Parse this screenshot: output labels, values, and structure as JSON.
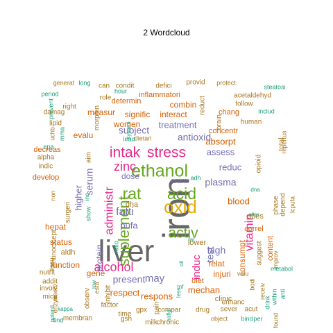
{
  "chart_data": {
    "type": "wordcloud",
    "title": "2  Wordcloud",
    "colors": [
      "#666666",
      "#E6AB02",
      "#D95F02",
      "#66A61E",
      "#E7298A",
      "#7570B3",
      "#1B9E77",
      "#A6761D"
    ],
    "words": [
      {
        "text": "liver",
        "color": "#666666"
      },
      {
        "text": "iron",
        "color": "#666666"
      },
      {
        "text": "oxid",
        "color": "#E6AB02"
      },
      {
        "text": "ethanol",
        "color": "#66A61E"
      },
      {
        "text": "suplement",
        "color": "#66A61E"
      },
      {
        "text": "stress",
        "color": "#E7298A"
      },
      {
        "text": "acid",
        "color": "#66A61E"
      },
      {
        "text": "activ",
        "color": "#66A61E"
      },
      {
        "text": "rat",
        "color": "#66A61E"
      },
      {
        "text": "intak",
        "color": "#E7298A"
      },
      {
        "text": "zinc",
        "color": "#E7298A"
      },
      {
        "text": "alcohol",
        "color": "#E7298A"
      },
      {
        "text": "administr",
        "color": "#E7298A"
      },
      {
        "text": "vitamin",
        "color": "#E7298A"
      },
      {
        "text": "induc",
        "color": "#E7298A"
      },
      {
        "text": "protein",
        "color": "#7570B3"
      },
      {
        "text": "fatti",
        "color": "#7570B3"
      },
      {
        "text": "plasma",
        "color": "#7570B3"
      },
      {
        "text": "antioxid",
        "color": "#7570B3"
      },
      {
        "text": "subject",
        "color": "#7570B3"
      },
      {
        "text": "serum",
        "color": "#7570B3"
      },
      {
        "text": "present",
        "color": "#7570B3"
      },
      {
        "text": "test",
        "color": "#7570B3"
      },
      {
        "text": "high",
        "color": "#7570B3"
      },
      {
        "text": "pufa",
        "color": "#7570B3"
      },
      {
        "text": "higher",
        "color": "#7570B3"
      },
      {
        "text": "may",
        "color": "#7570B3"
      },
      {
        "text": "assess",
        "color": "#7570B3"
      },
      {
        "text": "dose",
        "color": "#7570B3"
      },
      {
        "text": "treatment",
        "color": "#7570B3"
      },
      {
        "text": "reduc",
        "color": "#7570B3"
      },
      {
        "text": "blood",
        "color": "#D95F02"
      },
      {
        "text": "absorpt",
        "color": "#D95F02"
      },
      {
        "text": "respons",
        "color": "#D95F02"
      },
      {
        "text": "mechan",
        "color": "#D95F02"
      },
      {
        "text": "women",
        "color": "#D95F02"
      },
      {
        "text": "signific",
        "color": "#D95F02"
      },
      {
        "text": "interact",
        "color": "#D95F02"
      },
      {
        "text": "respect",
        "color": "#D95F02"
      },
      {
        "text": "measur",
        "color": "#D95F02"
      },
      {
        "text": "combin",
        "color": "#D95F02"
      },
      {
        "text": "evalu",
        "color": "#D95F02"
      },
      {
        "text": "status",
        "color": "#D95F02"
      },
      {
        "text": "hepat",
        "color": "#D95F02"
      },
      {
        "text": "consumpt",
        "color": "#D95F02"
      },
      {
        "text": "relat",
        "color": "#D95F02"
      },
      {
        "text": "injuri",
        "color": "#D95F02"
      },
      {
        "text": "function",
        "color": "#D95F02"
      },
      {
        "text": "gene",
        "color": "#D95F02"
      },
      {
        "text": "correl",
        "color": "#D95F02"
      },
      {
        "text": "diet",
        "color": "#D95F02"
      },
      {
        "text": "content",
        "color": "#D95F02"
      },
      {
        "text": "concentr",
        "color": "#D95F02"
      },
      {
        "text": "develop",
        "color": "#D95F02"
      },
      {
        "text": "decreas",
        "color": "#D95F02"
      },
      {
        "text": "inflammatori",
        "color": "#D95F02"
      },
      {
        "text": "determin",
        "color": "#D95F02"
      },
      {
        "text": "chang",
        "color": "#D95F02"
      },
      {
        "text": "anim",
        "color": "#7570B3"
      },
      {
        "text": "dha",
        "color": "#A6761D"
      },
      {
        "text": "aldh",
        "color": "#A6761D"
      },
      {
        "text": "lower",
        "color": "#A6761D"
      },
      {
        "text": "clinic",
        "color": "#A6761D"
      },
      {
        "text": "obes",
        "color": "#A6761D"
      },
      {
        "text": "suggest",
        "color": "#A6761D"
      },
      {
        "text": "opioid",
        "color": "#A6761D"
      },
      {
        "text": "phase",
        "color": "#A6761D"
      },
      {
        "text": "gpx",
        "color": "#A6761D"
      },
      {
        "text": "surgeri",
        "color": "#A6761D"
      },
      {
        "text": "antinocicept",
        "color": "#A6761D"
      },
      {
        "text": "aim",
        "color": "#A6761D"
      },
      {
        "text": "acetaldehyd",
        "color": "#A6761D"
      },
      {
        "text": "brain",
        "color": "#A6761D"
      },
      {
        "text": "human",
        "color": "#A6761D"
      },
      {
        "text": "factor",
        "color": "#A6761D"
      },
      {
        "text": "compar",
        "color": "#A6761D"
      },
      {
        "text": "drug",
        "color": "#A6761D"
      },
      {
        "text": "gsh",
        "color": "#A6761D"
      },
      {
        "text": "pain",
        "color": "#A6761D"
      },
      {
        "text": "provid",
        "color": "#A6761D"
      },
      {
        "text": "defici",
        "color": "#A6761D"
      },
      {
        "text": "condit",
        "color": "#A6761D"
      },
      {
        "text": "can",
        "color": "#A6761D"
      },
      {
        "text": "chronic",
        "color": "#A6761D"
      },
      {
        "text": "milk",
        "color": "#A6761D"
      },
      {
        "text": "time",
        "color": "#A6761D"
      },
      {
        "text": "membran",
        "color": "#A6761D"
      },
      {
        "text": "inhibit",
        "color": "#A6761D"
      },
      {
        "text": "enhanc",
        "color": "#A6761D"
      },
      {
        "text": "sever",
        "color": "#A6761D"
      },
      {
        "text": "acut",
        "color": "#A6761D"
      },
      {
        "text": "lipid",
        "color": "#A6761D"
      },
      {
        "text": "damag",
        "color": "#A6761D"
      },
      {
        "text": "right",
        "color": "#A6761D"
      },
      {
        "text": "role",
        "color": "#A6761D"
      },
      {
        "text": "morphin",
        "color": "#A6761D"
      },
      {
        "text": "reduct",
        "color": "#A6761D"
      },
      {
        "text": "follow",
        "color": "#A6761D"
      },
      {
        "text": "dietari",
        "color": "#A6761D"
      },
      {
        "text": "alpha",
        "color": "#A6761D"
      },
      {
        "text": "indic",
        "color": "#A6761D"
      },
      {
        "text": "mice",
        "color": "#A6761D"
      },
      {
        "text": "involv",
        "color": "#A6761D"
      },
      {
        "text": "addit",
        "color": "#A6761D"
      },
      {
        "text": "nutrit",
        "color": "#A6761D"
      },
      {
        "text": "observ",
        "color": "#A6761D"
      },
      {
        "text": "esta",
        "color": "#A6761D"
      },
      {
        "text": "total",
        "color": "#A6761D"
      },
      {
        "text": "depend",
        "color": "#A6761D"
      },
      {
        "text": "lcpufa",
        "color": "#A6761D"
      },
      {
        "text": "repertus",
        "color": "#A6761D"
      },
      {
        "text": "generat",
        "color": "#A6761D"
      },
      {
        "text": "protect",
        "color": "#A6761D"
      },
      {
        "text": "valu",
        "color": "#A6761D"
      },
      {
        "text": "bodi",
        "color": "#A6761D"
      },
      {
        "text": "receiv",
        "color": "#A6761D"
      },
      {
        "text": "non",
        "color": "#A6761D"
      },
      {
        "text": "tissu",
        "color": "#A6761D"
      },
      {
        "text": "reserv",
        "color": "#A6761D"
      },
      {
        "text": "enzym",
        "color": "#A6761D"
      },
      {
        "text": "object",
        "color": "#A6761D"
      },
      {
        "text": "found",
        "color": "#A6761D"
      },
      {
        "text": "improv",
        "color": "#A6761D"
      },
      {
        "text": "uchb",
        "color": "#A6761D"
      },
      {
        "text": "steatosi",
        "color": "#1B9E77"
      },
      {
        "text": "includ",
        "color": "#1B9E77"
      },
      {
        "text": "period",
        "color": "#1B9E77"
      },
      {
        "text": "prevent",
        "color": "#1B9E77"
      },
      {
        "text": "long",
        "color": "#1B9E77"
      },
      {
        "text": "hour",
        "color": "#1B9E77"
      },
      {
        "text": "lead",
        "color": "#1B9E77"
      },
      {
        "text": "epa",
        "color": "#1B9E77"
      },
      {
        "text": "mma",
        "color": "#1B9E77"
      },
      {
        "text": "adh",
        "color": "#1B9E77"
      },
      {
        "text": "dna",
        "color": "#1B9E77"
      },
      {
        "text": "alter",
        "color": "#1B9E77"
      },
      {
        "text": "inc",
        "color": "#1B9E77"
      },
      {
        "text": "show",
        "color": "#1B9E77"
      },
      {
        "text": "ratio",
        "color": "#1B9E77"
      },
      {
        "text": "fat",
        "color": "#1B9E77"
      },
      {
        "text": "tnf",
        "color": "#1B9E77"
      },
      {
        "text": "less",
        "color": "#1B9E77"
      },
      {
        "text": "nafld",
        "color": "#1B9E77"
      },
      {
        "text": "find",
        "color": "#1B9E77"
      },
      {
        "text": "kappa",
        "color": "#1B9E77"
      },
      {
        "text": "potenti",
        "color": "#1B9E77"
      },
      {
        "text": "bind",
        "color": "#1B9E77"
      },
      {
        "text": "per",
        "color": "#1B9E77"
      },
      {
        "text": "metabol",
        "color": "#1B9E77"
      },
      {
        "text": "anti",
        "color": "#1B9E77"
      },
      {
        "text": "drink",
        "color": "#1B9E77"
      },
      {
        "text": "within",
        "color": "#1B9E77"
      },
      {
        "text": "system",
        "color": "#1B9E77"
      },
      {
        "text": "oil",
        "color": "#1B9E77"
      },
      {
        "text": "low",
        "color": "#1B9E77"
      },
      {
        "text": "ala",
        "color": "#1B9E77"
      }
    ]
  }
}
